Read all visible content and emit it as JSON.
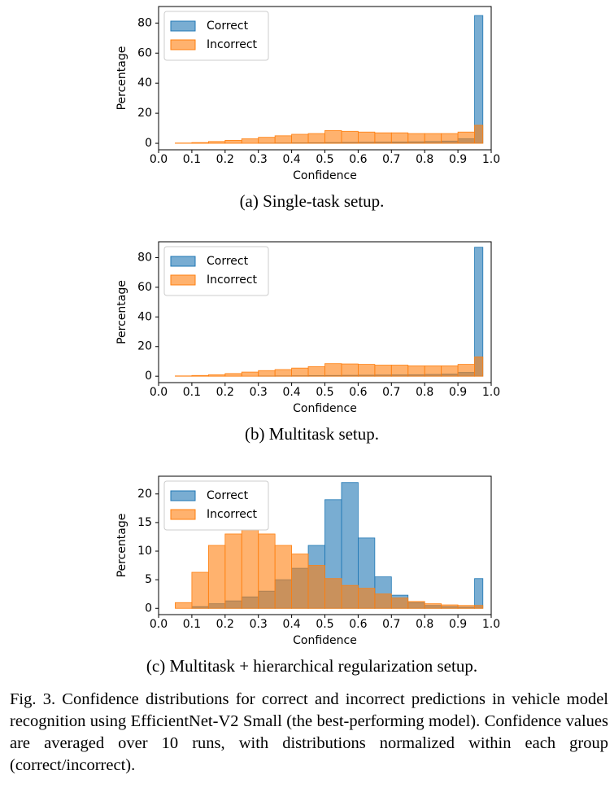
{
  "chart_data": [
    {
      "type": "histogram",
      "caption": "(a) Single-task setup.",
      "xlabel": "Confidence",
      "ylabel": "Percentage",
      "bins": [
        0.025,
        0.05,
        0.1,
        0.15,
        0.2,
        0.25,
        0.3,
        0.35,
        0.4,
        0.45,
        0.5,
        0.55,
        0.6,
        0.65,
        0.7,
        0.75,
        0.8,
        0.85,
        0.9,
        0.95,
        0.975
      ],
      "series": [
        {
          "name": "Correct",
          "color": "#1f77b4",
          "values": [
            0,
            0,
            0,
            0,
            0,
            0,
            0.1,
            0.2,
            0.3,
            0.4,
            0.5,
            0.6,
            0.7,
            0.8,
            0.9,
            1,
            1.2,
            1.5,
            3,
            85
          ]
        },
        {
          "name": "Incorrect",
          "color": "#ff7f0e",
          "values": [
            0,
            0.2,
            0.5,
            1.2,
            2,
            3,
            4,
            5,
            6,
            6.5,
            8.5,
            8,
            7.5,
            7,
            7,
            6.5,
            6.5,
            6.5,
            7.5,
            12
          ]
        }
      ],
      "xlim": [
        0,
        1
      ],
      "ylim": [
        -4.3,
        91
      ],
      "xticks": [
        {
          "value": 0,
          "label": "0.0"
        },
        {
          "value": 0.1,
          "label": "0.1"
        },
        {
          "value": 0.2,
          "label": "0.2"
        },
        {
          "value": 0.3,
          "label": "0.3"
        },
        {
          "value": 0.4,
          "label": "0.4"
        },
        {
          "value": 0.5,
          "label": "0.5"
        },
        {
          "value": 0.6,
          "label": "0.6"
        },
        {
          "value": 0.7,
          "label": "0.7"
        },
        {
          "value": 0.8,
          "label": "0.8"
        },
        {
          "value": 0.9,
          "label": "0.9"
        },
        {
          "value": 1,
          "label": "1.0"
        }
      ],
      "yticks": [
        0,
        20,
        40,
        60,
        80
      ],
      "legend": "upper left"
    },
    {
      "type": "histogram",
      "caption": "(b) Multitask setup.",
      "xlabel": "Confidence",
      "ylabel": "Percentage",
      "bins": [
        0.025,
        0.05,
        0.1,
        0.15,
        0.2,
        0.25,
        0.3,
        0.35,
        0.4,
        0.45,
        0.5,
        0.55,
        0.6,
        0.65,
        0.7,
        0.75,
        0.8,
        0.85,
        0.9,
        0.95,
        0.975
      ],
      "series": [
        {
          "name": "Correct",
          "color": "#1f77b4",
          "values": [
            0,
            0,
            0,
            0,
            0,
            0,
            0.1,
            0.2,
            0.3,
            0.4,
            0.5,
            0.6,
            0.7,
            0.8,
            0.9,
            1,
            1.2,
            1.5,
            2.5,
            87
          ]
        },
        {
          "name": "Incorrect",
          "color": "#ff7f0e",
          "values": [
            0,
            0.2,
            0.5,
            1,
            1.8,
            2.8,
            3.8,
            4.5,
            5.5,
            6.5,
            8.5,
            8.3,
            8,
            7.5,
            7.5,
            7,
            7,
            7,
            8,
            13
          ]
        }
      ],
      "xlim": [
        0,
        1
      ],
      "ylim": [
        -4.3,
        90.7
      ],
      "xticks": [
        {
          "value": 0,
          "label": "0.0"
        },
        {
          "value": 0.1,
          "label": "0.1"
        },
        {
          "value": 0.2,
          "label": "0.2"
        },
        {
          "value": 0.3,
          "label": "0.3"
        },
        {
          "value": 0.4,
          "label": "0.4"
        },
        {
          "value": 0.5,
          "label": "0.5"
        },
        {
          "value": 0.6,
          "label": "0.6"
        },
        {
          "value": 0.7,
          "label": "0.7"
        },
        {
          "value": 0.8,
          "label": "0.8"
        },
        {
          "value": 0.9,
          "label": "0.9"
        },
        {
          "value": 1,
          "label": "1.0"
        }
      ],
      "yticks": [
        0,
        20,
        40,
        60,
        80
      ],
      "legend": "upper left"
    },
    {
      "type": "histogram",
      "caption": "(c) Multitask + hierarchical regularization setup.",
      "xlabel": "Confidence",
      "ylabel": "Percentage",
      "bins": [
        0.025,
        0.05,
        0.1,
        0.15,
        0.2,
        0.25,
        0.3,
        0.35,
        0.4,
        0.45,
        0.5,
        0.55,
        0.6,
        0.65,
        0.7,
        0.75,
        0.8,
        0.85,
        0.9,
        0.95,
        0.975
      ],
      "series": [
        {
          "name": "Correct",
          "color": "#1f77b4",
          "values": [
            0,
            0,
            0.3,
            0.8,
            1.3,
            2,
            3,
            5,
            7,
            11,
            19,
            22,
            12.3,
            5.5,
            2.3,
            1,
            0.5,
            0.3,
            0.2,
            5.2
          ]
        },
        {
          "name": "Incorrect",
          "color": "#ff7f0e",
          "values": [
            0,
            1,
            6.3,
            11,
            13,
            13.7,
            13,
            11,
            9.5,
            7.5,
            5.2,
            4,
            3.5,
            2.5,
            1.8,
            1.2,
            0.8,
            0.6,
            0.5,
            0.5
          ]
        }
      ],
      "xlim": [
        0,
        1
      ],
      "ylim": [
        -1.1,
        23.1
      ],
      "xticks": [
        {
          "value": 0,
          "label": "0.0"
        },
        {
          "value": 0.1,
          "label": "0.1"
        },
        {
          "value": 0.2,
          "label": "0.2"
        },
        {
          "value": 0.3,
          "label": "0.3"
        },
        {
          "value": 0.4,
          "label": "0.4"
        },
        {
          "value": 0.5,
          "label": "0.5"
        },
        {
          "value": 0.6,
          "label": "0.6"
        },
        {
          "value": 0.7,
          "label": "0.7"
        },
        {
          "value": 0.8,
          "label": "0.8"
        },
        {
          "value": 0.9,
          "label": "0.9"
        },
        {
          "value": 1,
          "label": "1.0"
        }
      ],
      "yticks": [
        0,
        5,
        10,
        15,
        20
      ],
      "legend": "upper left"
    }
  ],
  "figure_caption": "Fig. 3.  Confidence distributions for correct and incorrect predictions in vehicle model recognition using EfficientNet-V2 Small (the best-performing model). Confidence values are averaged over 10 runs, with distributions normalized within each group (correct/incorrect)."
}
